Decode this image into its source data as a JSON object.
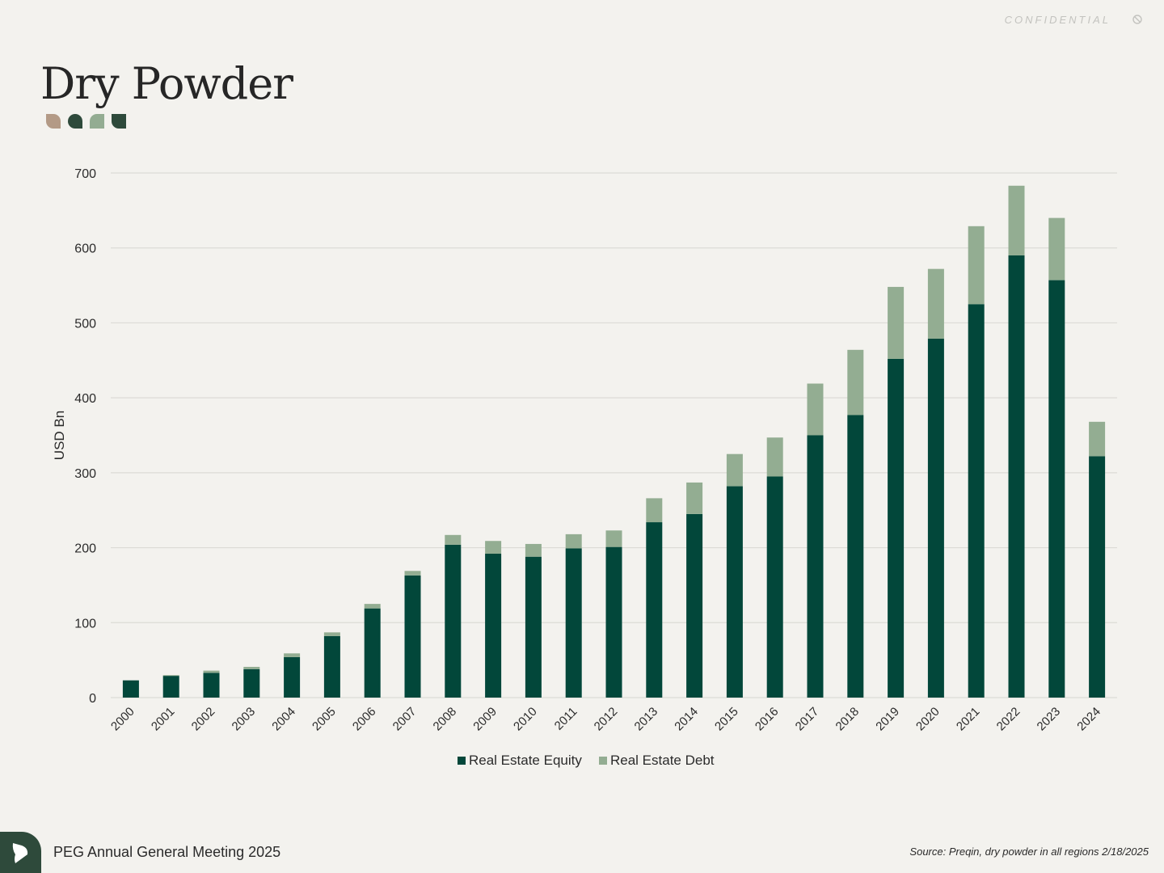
{
  "header": {
    "confidential": "CONFIDENTIAL",
    "title": "Dry Powder",
    "deco_colors": [
      "#b39a86",
      "#2e4a3b",
      "#93ac92",
      "#2e4a3b"
    ]
  },
  "footer": {
    "meeting": "PEG Annual General Meeting 2025",
    "source": "Source: Preqin, dry powder in all regions  2/18/2025"
  },
  "colors": {
    "equity": "#02473a",
    "debt": "#93ad92",
    "grid": "#dcdbd6"
  },
  "chart_data": {
    "type": "bar",
    "stacked": true,
    "title": "",
    "xlabel": "",
    "ylabel": "USD Bn",
    "ylim": [
      0,
      700
    ],
    "yticks": [
      0,
      100,
      200,
      300,
      400,
      500,
      600,
      700
    ],
    "categories": [
      "2000",
      "2001",
      "2002",
      "2003",
      "2004",
      "2005",
      "2006",
      "2007",
      "2008",
      "2009",
      "2010",
      "2011",
      "2012",
      "2013",
      "2014",
      "2015",
      "2016",
      "2017",
      "2018",
      "2019",
      "2020",
      "2021",
      "2022",
      "2023",
      "2024"
    ],
    "series": [
      {
        "name": "Real Estate Equity",
        "values": [
          23,
          29,
          33,
          38,
          54,
          82,
          119,
          163,
          204,
          192,
          188,
          199,
          201,
          234,
          245,
          282,
          295,
          350,
          377,
          452,
          479,
          525,
          590,
          557,
          322
        ]
      },
      {
        "name": "Real Estate Debt",
        "values": [
          0,
          1,
          3,
          3,
          5,
          5,
          6,
          6,
          13,
          17,
          17,
          19,
          22,
          32,
          42,
          43,
          52,
          69,
          87,
          96,
          93,
          104,
          93,
          83,
          46
        ]
      }
    ],
    "legend_position": "bottom-center"
  }
}
